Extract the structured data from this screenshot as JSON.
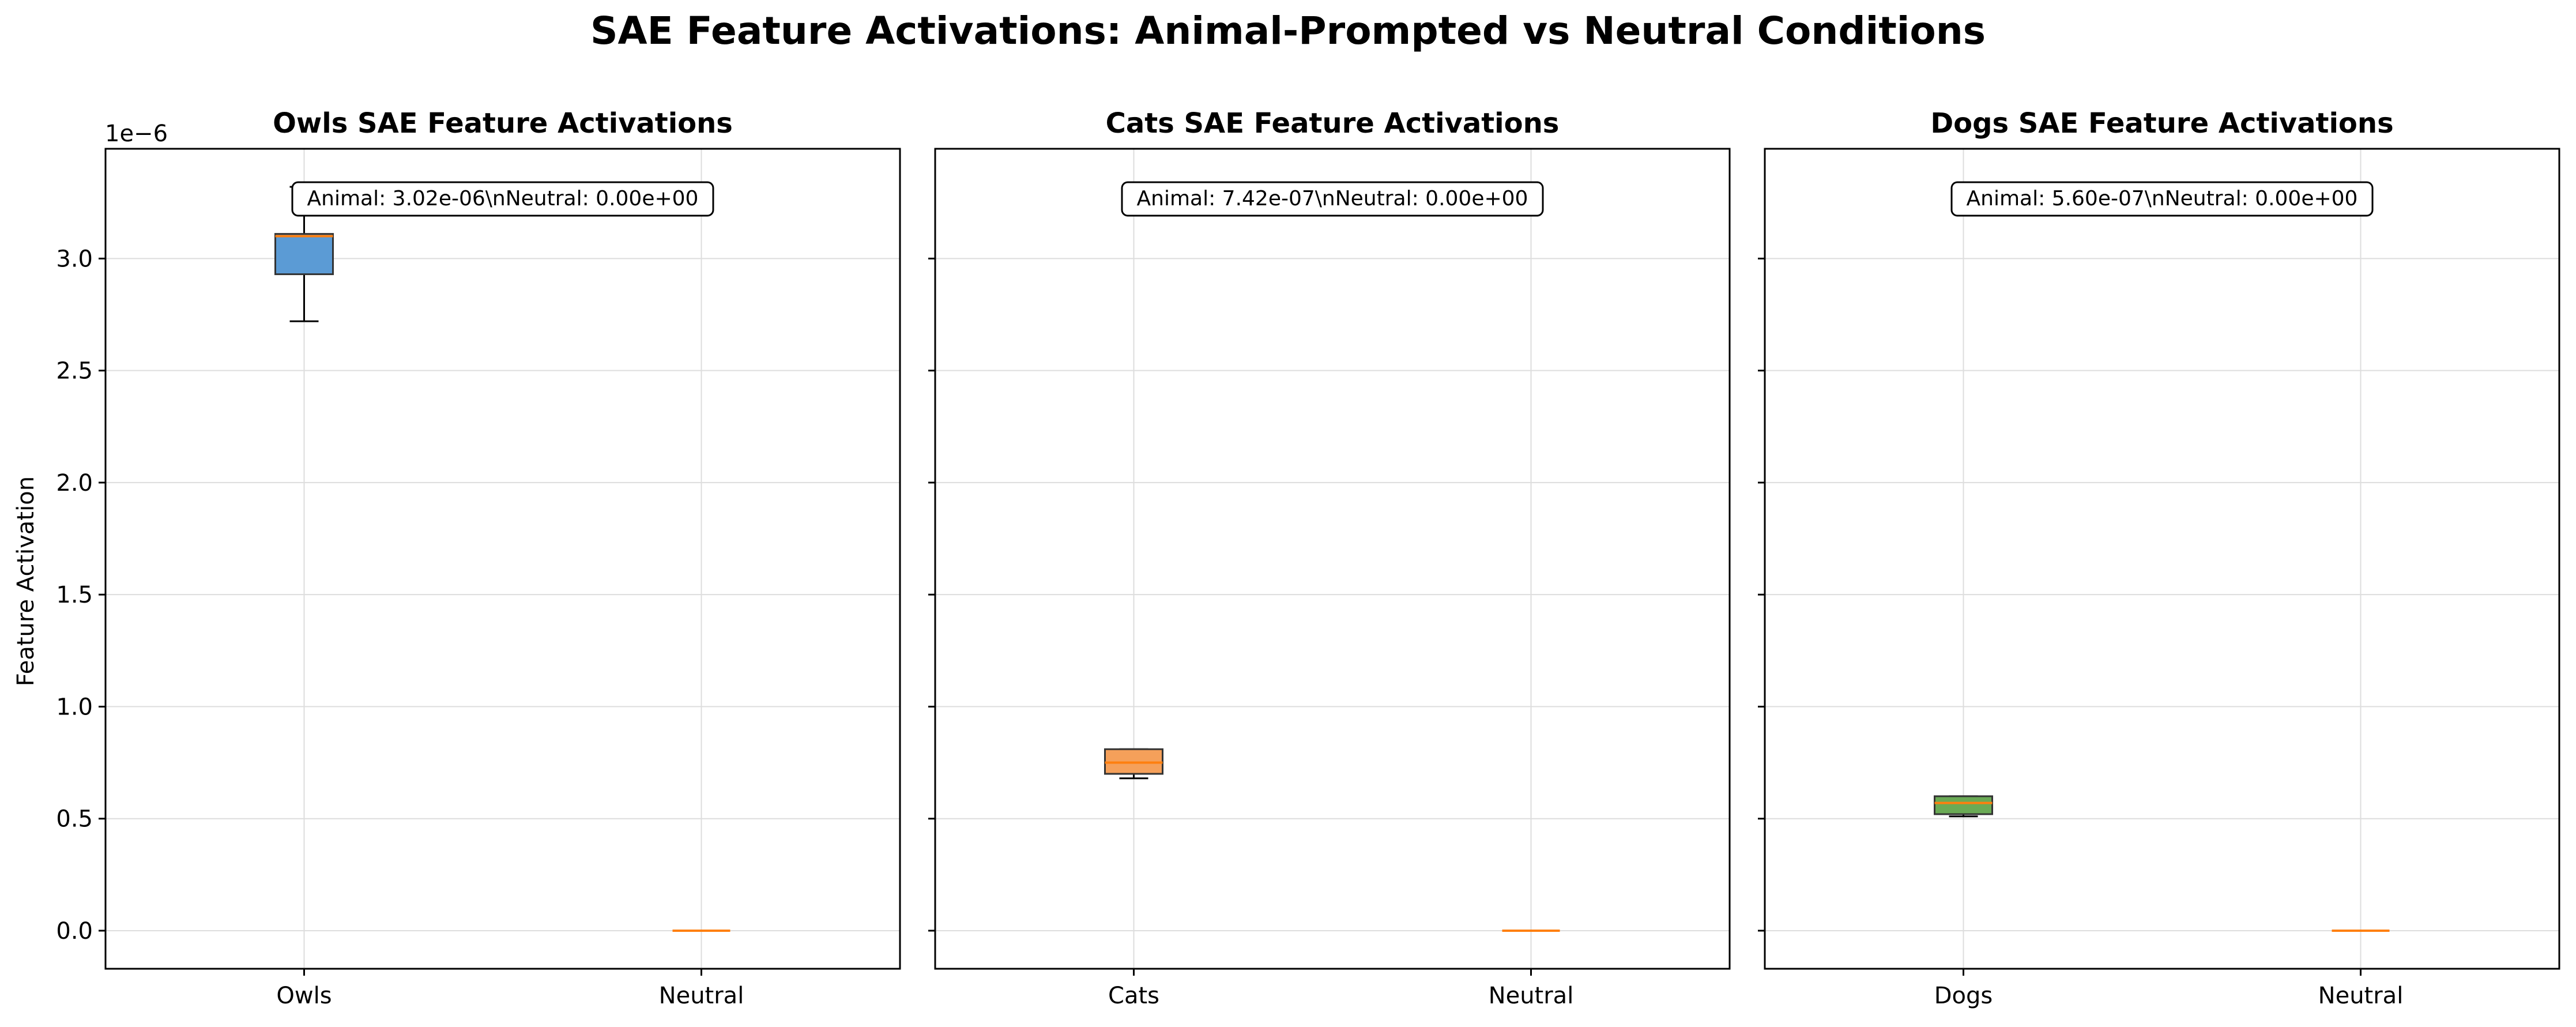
{
  "figure": {
    "title": "SAE Feature Activations: Animal-Prompted vs Neutral Conditions",
    "ylabel": "Feature Activation",
    "offset_text": "1e−6"
  },
  "chart_data": [
    {
      "type": "box",
      "title": "Owls SAE Feature Activations",
      "categories": [
        "Owls",
        "Neutral"
      ],
      "ylim": [
        -1.7e-07,
        3.49e-06
      ],
      "yticks": [
        0.0,
        0.5,
        1.0,
        1.5,
        2.0,
        2.5,
        3.0
      ],
      "ytick_labels": [
        "0.0",
        "0.5",
        "1.0",
        "1.5",
        "2.0",
        "2.5",
        "3.0"
      ],
      "grid": true,
      "annotation": "Animal: 3.02e-06\\nNeutral: 0.00e+00",
      "color": "#5b9bd5",
      "series": [
        {
          "category": "Owls",
          "whisker_low": 2.72e-06,
          "q1": 2.93e-06,
          "median": 3.1e-06,
          "q3": 3.11e-06,
          "whisker_high": 3.32e-06
        },
        {
          "category": "Neutral",
          "whisker_low": 0,
          "q1": 0,
          "median": 0,
          "q3": 0,
          "whisker_high": 0
        }
      ]
    },
    {
      "type": "box",
      "title": "Cats SAE Feature Activations",
      "categories": [
        "Cats",
        "Neutral"
      ],
      "ylim": [
        -1.7e-07,
        3.49e-06
      ],
      "yticks": [
        0.0,
        0.5,
        1.0,
        1.5,
        2.0,
        2.5,
        3.0
      ],
      "grid": true,
      "annotation": "Animal: 7.42e-07\\nNeutral: 0.00e+00",
      "color": "#f5a05a",
      "series": [
        {
          "category": "Cats",
          "whisker_low": 6.8e-07,
          "q1": 7e-07,
          "median": 7.5e-07,
          "q3": 8.1e-07,
          "whisker_high": 8.1e-07
        },
        {
          "category": "Neutral",
          "whisker_low": 0,
          "q1": 0,
          "median": 0,
          "q3": 0,
          "whisker_high": 0
        }
      ]
    },
    {
      "type": "box",
      "title": "Dogs SAE Feature Activations",
      "categories": [
        "Dogs",
        "Neutral"
      ],
      "ylim": [
        -1.7e-07,
        3.49e-06
      ],
      "yticks": [
        0.0,
        0.5,
        1.0,
        1.5,
        2.0,
        2.5,
        3.0
      ],
      "grid": true,
      "annotation": "Animal: 5.60e-07\\nNeutral: 0.00e+00",
      "color": "#6aaa55",
      "series": [
        {
          "category": "Dogs",
          "whisker_low": 5.1e-07,
          "q1": 5.2e-07,
          "median": 5.7e-07,
          "q3": 6e-07,
          "whisker_high": 6e-07
        },
        {
          "category": "Neutral",
          "whisker_low": 0,
          "q1": 0,
          "median": 0,
          "q3": 0,
          "whisker_high": 0
        }
      ]
    }
  ],
  "colors": {
    "median": "#ff7f0e",
    "axis": "#000000",
    "grid": "#dddddd"
  }
}
